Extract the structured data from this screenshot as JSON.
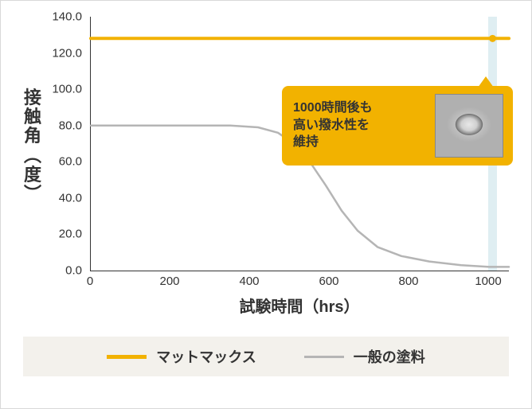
{
  "chart": {
    "type": "line",
    "y_axis": {
      "title_chars": [
        "接",
        "触",
        "角",
        "︵",
        "度",
        "︶"
      ],
      "min": 0.0,
      "max": 140.0,
      "tick_step": 20.0,
      "ticks": [
        "0.0",
        "20.0",
        "40.0",
        "60.0",
        "80.0",
        "100.0",
        "120.0",
        "140.0"
      ]
    },
    "x_axis": {
      "title": "試験時間（hrs）",
      "min": 0,
      "max": 1050,
      "ticks": [
        0,
        200,
        400,
        600,
        800,
        1000
      ]
    },
    "background_color": "#ffffff",
    "axis_color": "#333333",
    "series": [
      {
        "name": "mattmax",
        "label": "マットマックス",
        "color": "#f2b200",
        "line_width": 4,
        "points": [
          [
            0,
            128
          ],
          [
            1050,
            128
          ]
        ]
      },
      {
        "name": "generic",
        "label": "一般の塗料",
        "color": "#b5b5b5",
        "line_width": 2.5,
        "points": [
          [
            0,
            80
          ],
          [
            350,
            80
          ],
          [
            420,
            79
          ],
          [
            470,
            76
          ],
          [
            510,
            70
          ],
          [
            550,
            60
          ],
          [
            590,
            47
          ],
          [
            630,
            33
          ],
          [
            670,
            22
          ],
          [
            720,
            13
          ],
          [
            780,
            8
          ],
          [
            850,
            5
          ],
          [
            930,
            3
          ],
          [
            1000,
            2
          ],
          [
            1050,
            2
          ]
        ]
      }
    ],
    "reference_band": {
      "x_start": 998,
      "x_end": 1020,
      "color": "#c9e3ea"
    },
    "callout": {
      "text_lines": [
        "1000時間後も",
        "高い撥水性を",
        "維持"
      ],
      "bg_color": "#f2b200",
      "text_color": "#333333",
      "fontsize": 16,
      "anchor_x": 1010,
      "anchor_y": 128,
      "box_left_x": 480,
      "box_top_y": 102
    }
  },
  "legend": {
    "background": "#f3f1ec",
    "items": [
      {
        "label": "マットマックス",
        "color": "#f2b200",
        "line_width": 5
      },
      {
        "label": "一般の塗料",
        "color": "#b5b5b5",
        "line_width": 3
      }
    ]
  }
}
